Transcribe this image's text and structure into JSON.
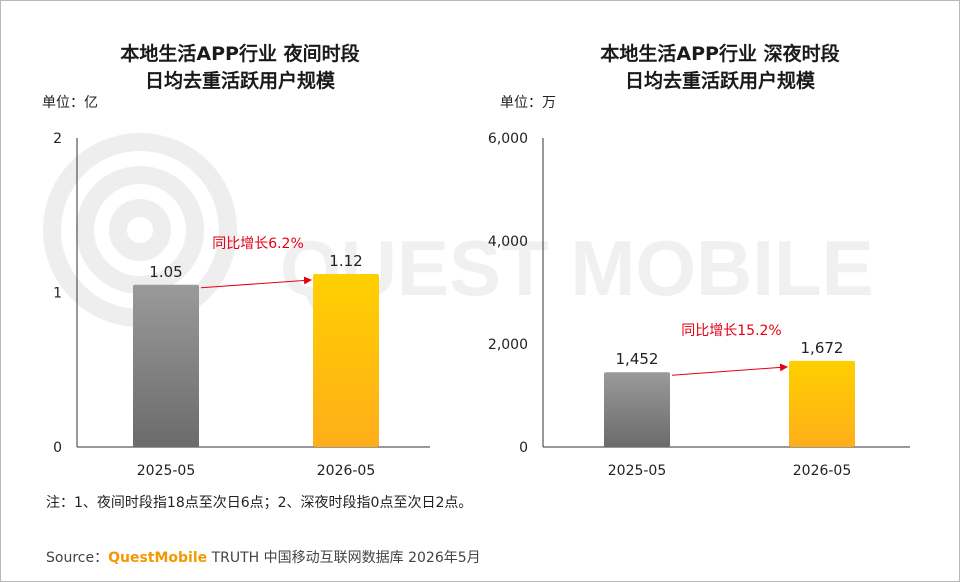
{
  "charts": [
    {
      "title_line1": "本地生活APP行业 夜间时段",
      "title_line2": "日均去重活跃用户规模",
      "unit": "单位：亿",
      "growth_label": "同比增长6.2%",
      "y_ticks": [
        "0",
        "1",
        "2"
      ]
    },
    {
      "title_line1": "本地生活APP行业 深夜时段",
      "title_line2": "日均去重活跃用户规模",
      "unit": "单位：万",
      "growth_label": "同比增长15.2%",
      "y_ticks": [
        "0",
        "2,000",
        "4,000",
        "6,000"
      ]
    }
  ],
  "chart_data": [
    {
      "type": "bar",
      "title": "本地生活APP行业 夜间时段 日均去重活跃用户规模",
      "categories": [
        "2025-05",
        "2026-05"
      ],
      "values": [
        1.05,
        1.12
      ],
      "value_labels": [
        "1.05",
        "1.12"
      ],
      "ylim": [
        0,
        2
      ],
      "ylabel": "单位：亿",
      "annotation": "同比增长6.2%",
      "colors": [
        "#7d7d7d",
        "#ffb80a"
      ]
    },
    {
      "type": "bar",
      "title": "本地生活APP行业 深夜时段 日均去重活跃用户规模",
      "categories": [
        "2025-05",
        "2026-05"
      ],
      "values": [
        1452,
        1672
      ],
      "value_labels": [
        "1,452",
        "1,672"
      ],
      "ylim": [
        0,
        6000
      ],
      "ylabel": "单位：万",
      "annotation": "同比增长15.2%",
      "colors": [
        "#7d7d7d",
        "#ffb80a"
      ]
    }
  ],
  "footnote": "注：1、夜间时段指18点至次日6点；2、深夜时段指0点至次日2点。",
  "source": {
    "label": "Source：",
    "brand": "QuestMobile",
    "text": " TRUTH 中国移动互联网数据库 2026年5月"
  },
  "watermark_text": "QUEST MOBILE"
}
